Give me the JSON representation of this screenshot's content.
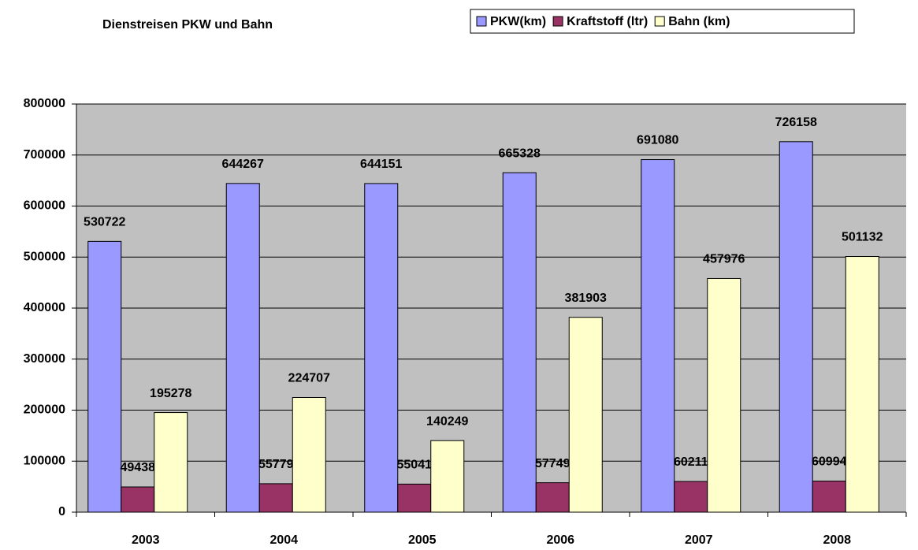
{
  "chart_data": {
    "type": "bar",
    "title": "Dienstreisen PKW und Bahn",
    "categories": [
      "2003",
      "2004",
      "2005",
      "2006",
      "2007",
      "2008"
    ],
    "series": [
      {
        "name": "PKW(km)",
        "color": "#9999ff",
        "values": [
          530722,
          644267,
          644151,
          665328,
          691080,
          726158
        ]
      },
      {
        "name": "Kraftstoff (ltr)",
        "color": "#993366",
        "values": [
          49438,
          55779,
          55041,
          57749,
          60211,
          60994
        ]
      },
      {
        "name": "Bahn (km)",
        "color": "#ffffcc",
        "values": [
          195278,
          224707,
          140249,
          381903,
          457976,
          501132
        ]
      }
    ],
    "ylim": [
      0,
      800000
    ],
    "yticks": [
      0,
      100000,
      200000,
      300000,
      400000,
      500000,
      600000,
      700000,
      800000
    ],
    "grid": true,
    "legend": "top-right",
    "plot_background": "#c0c0c0"
  }
}
